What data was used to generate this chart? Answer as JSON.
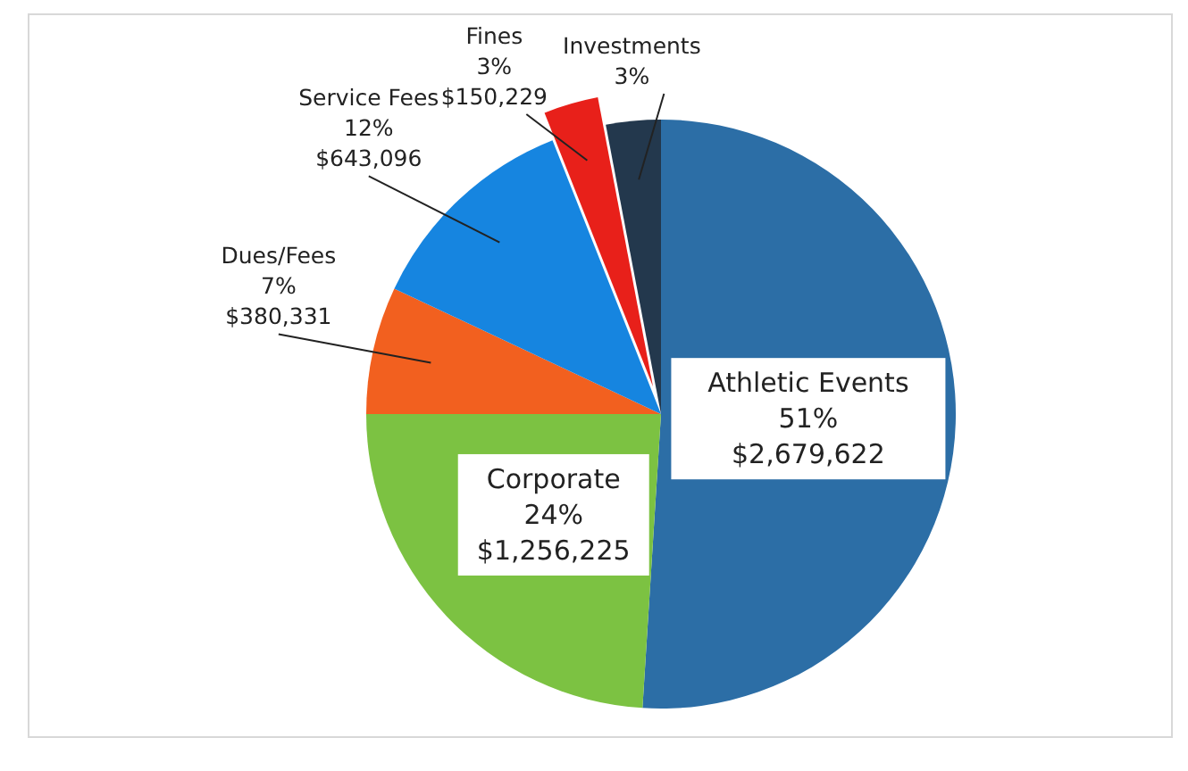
{
  "chart_data": {
    "type": "pie",
    "categories": [
      "Athletic Events",
      "Corporate",
      "Dues/Fees",
      "Service Fees",
      "Fines",
      "Investments"
    ],
    "values": [
      51,
      24,
      7,
      12,
      3,
      3
    ],
    "colors": [
      "#2c6ea6",
      "#7cc242",
      "#f2601f",
      "#1685e0",
      "#e8201a",
      "#23384d"
    ],
    "value_labels": [
      "51%\n$2,679,622",
      "24%\n$1,256,225",
      "7%\n$380,331",
      "12%\n$643,096",
      "3%\n$150,229",
      "3%"
    ]
  }
}
